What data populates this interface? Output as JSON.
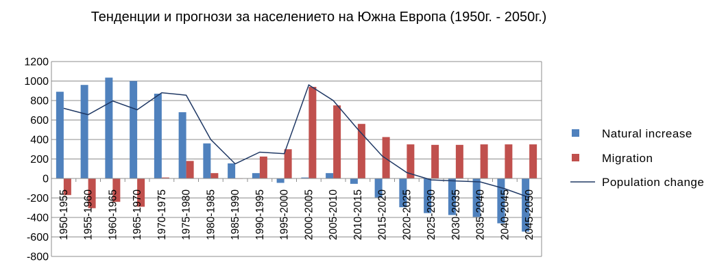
{
  "chart_data": {
    "type": "bar",
    "title": "Тенденции и прогнози за населението на Южна Европа (1950г. - 2050г.)",
    "xlabel": "",
    "ylabel": "",
    "ylim": [
      -800,
      1200
    ],
    "yticks": [
      1200,
      1000,
      800,
      600,
      400,
      200,
      0,
      -200,
      -400,
      -600,
      -800
    ],
    "grid": true,
    "legend_position": "right",
    "categories": [
      "1950-1955",
      "1955-1960",
      "1960-1965",
      "1965-1970",
      "1970-1975",
      "1975-1980",
      "1980-1985",
      "1985-1990",
      "1990-1995",
      "1995-2000",
      "2000-2005",
      "2005-2010",
      "2010-2015",
      "2015-2020",
      "2020-2025",
      "2025-2030",
      "2030-2035",
      "2035-2040",
      "2040-2045",
      "2045-2050"
    ],
    "series": [
      {
        "name": "Natural increase",
        "kind": "bar",
        "color": "#4f81bd",
        "values": [
          890,
          960,
          1035,
          1000,
          870,
          680,
          360,
          155,
          55,
          -45,
          10,
          55,
          -55,
          -195,
          -295,
          -355,
          -375,
          -395,
          -460,
          -545
        ]
      },
      {
        "name": "Migration",
        "kind": "bar",
        "color": "#c0504d",
        "values": [
          -170,
          -305,
          -240,
          -290,
          10,
          180,
          55,
          0,
          225,
          300,
          940,
          750,
          560,
          425,
          350,
          345,
          345,
          350,
          350,
          350
        ]
      },
      {
        "name": "Population change",
        "kind": "line",
        "color": "#1f3864",
        "values": [
          720,
          655,
          795,
          705,
          880,
          855,
          400,
          150,
          270,
          255,
          960,
          800,
          505,
          230,
          60,
          -15,
          -25,
          -35,
          -105,
          -195
        ]
      }
    ]
  }
}
